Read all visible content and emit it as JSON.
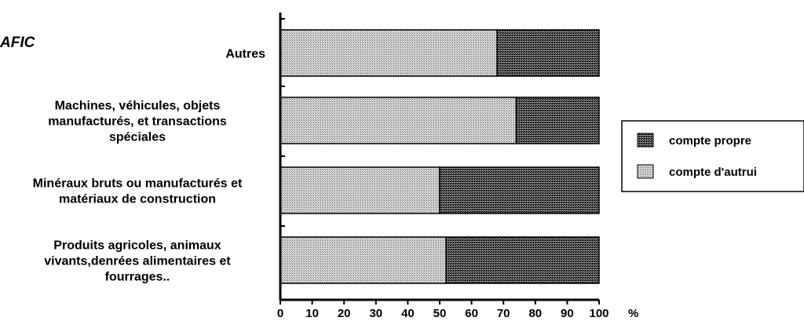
{
  "chart_data": {
    "type": "bar",
    "orientation": "horizontal",
    "stacked": true,
    "title_fragment": "AFIC",
    "categories": [
      "Autres",
      "Machines, véhicules, objets manufacturés, et transactions spéciales",
      "Minéraux bruts ou manufacturés et matériaux de construction",
      "Produits agricoles, animaux vivants,denrées alimentaires et fourrages.."
    ],
    "category_lines": [
      [
        "Autres"
      ],
      [
        "Machines, véhicules, objets",
        "manufacturés,   et transactions",
        "spéciales"
      ],
      [
        "Minéraux bruts ou manufacturés et",
        "matériaux de construction"
      ],
      [
        "Produits agricoles, animaux",
        "vivants,denrées alimentaires  et",
        "fourrages.."
      ]
    ],
    "series": [
      {
        "name": "compte d'autrui",
        "values": [
          68,
          74,
          50,
          52
        ],
        "pattern": "light"
      },
      {
        "name": "compte propre",
        "values": [
          32,
          26,
          50,
          48
        ],
        "pattern": "dark"
      }
    ],
    "xlim": [
      0,
      100
    ],
    "xticks": [
      "0",
      "10",
      "20",
      "30",
      "40",
      "50",
      "60",
      "70",
      "80",
      "90",
      "100"
    ],
    "xunit": "%",
    "legend_order": [
      "compte propre",
      "compte d'autrui"
    ],
    "legend_position": "right",
    "grid": false
  }
}
